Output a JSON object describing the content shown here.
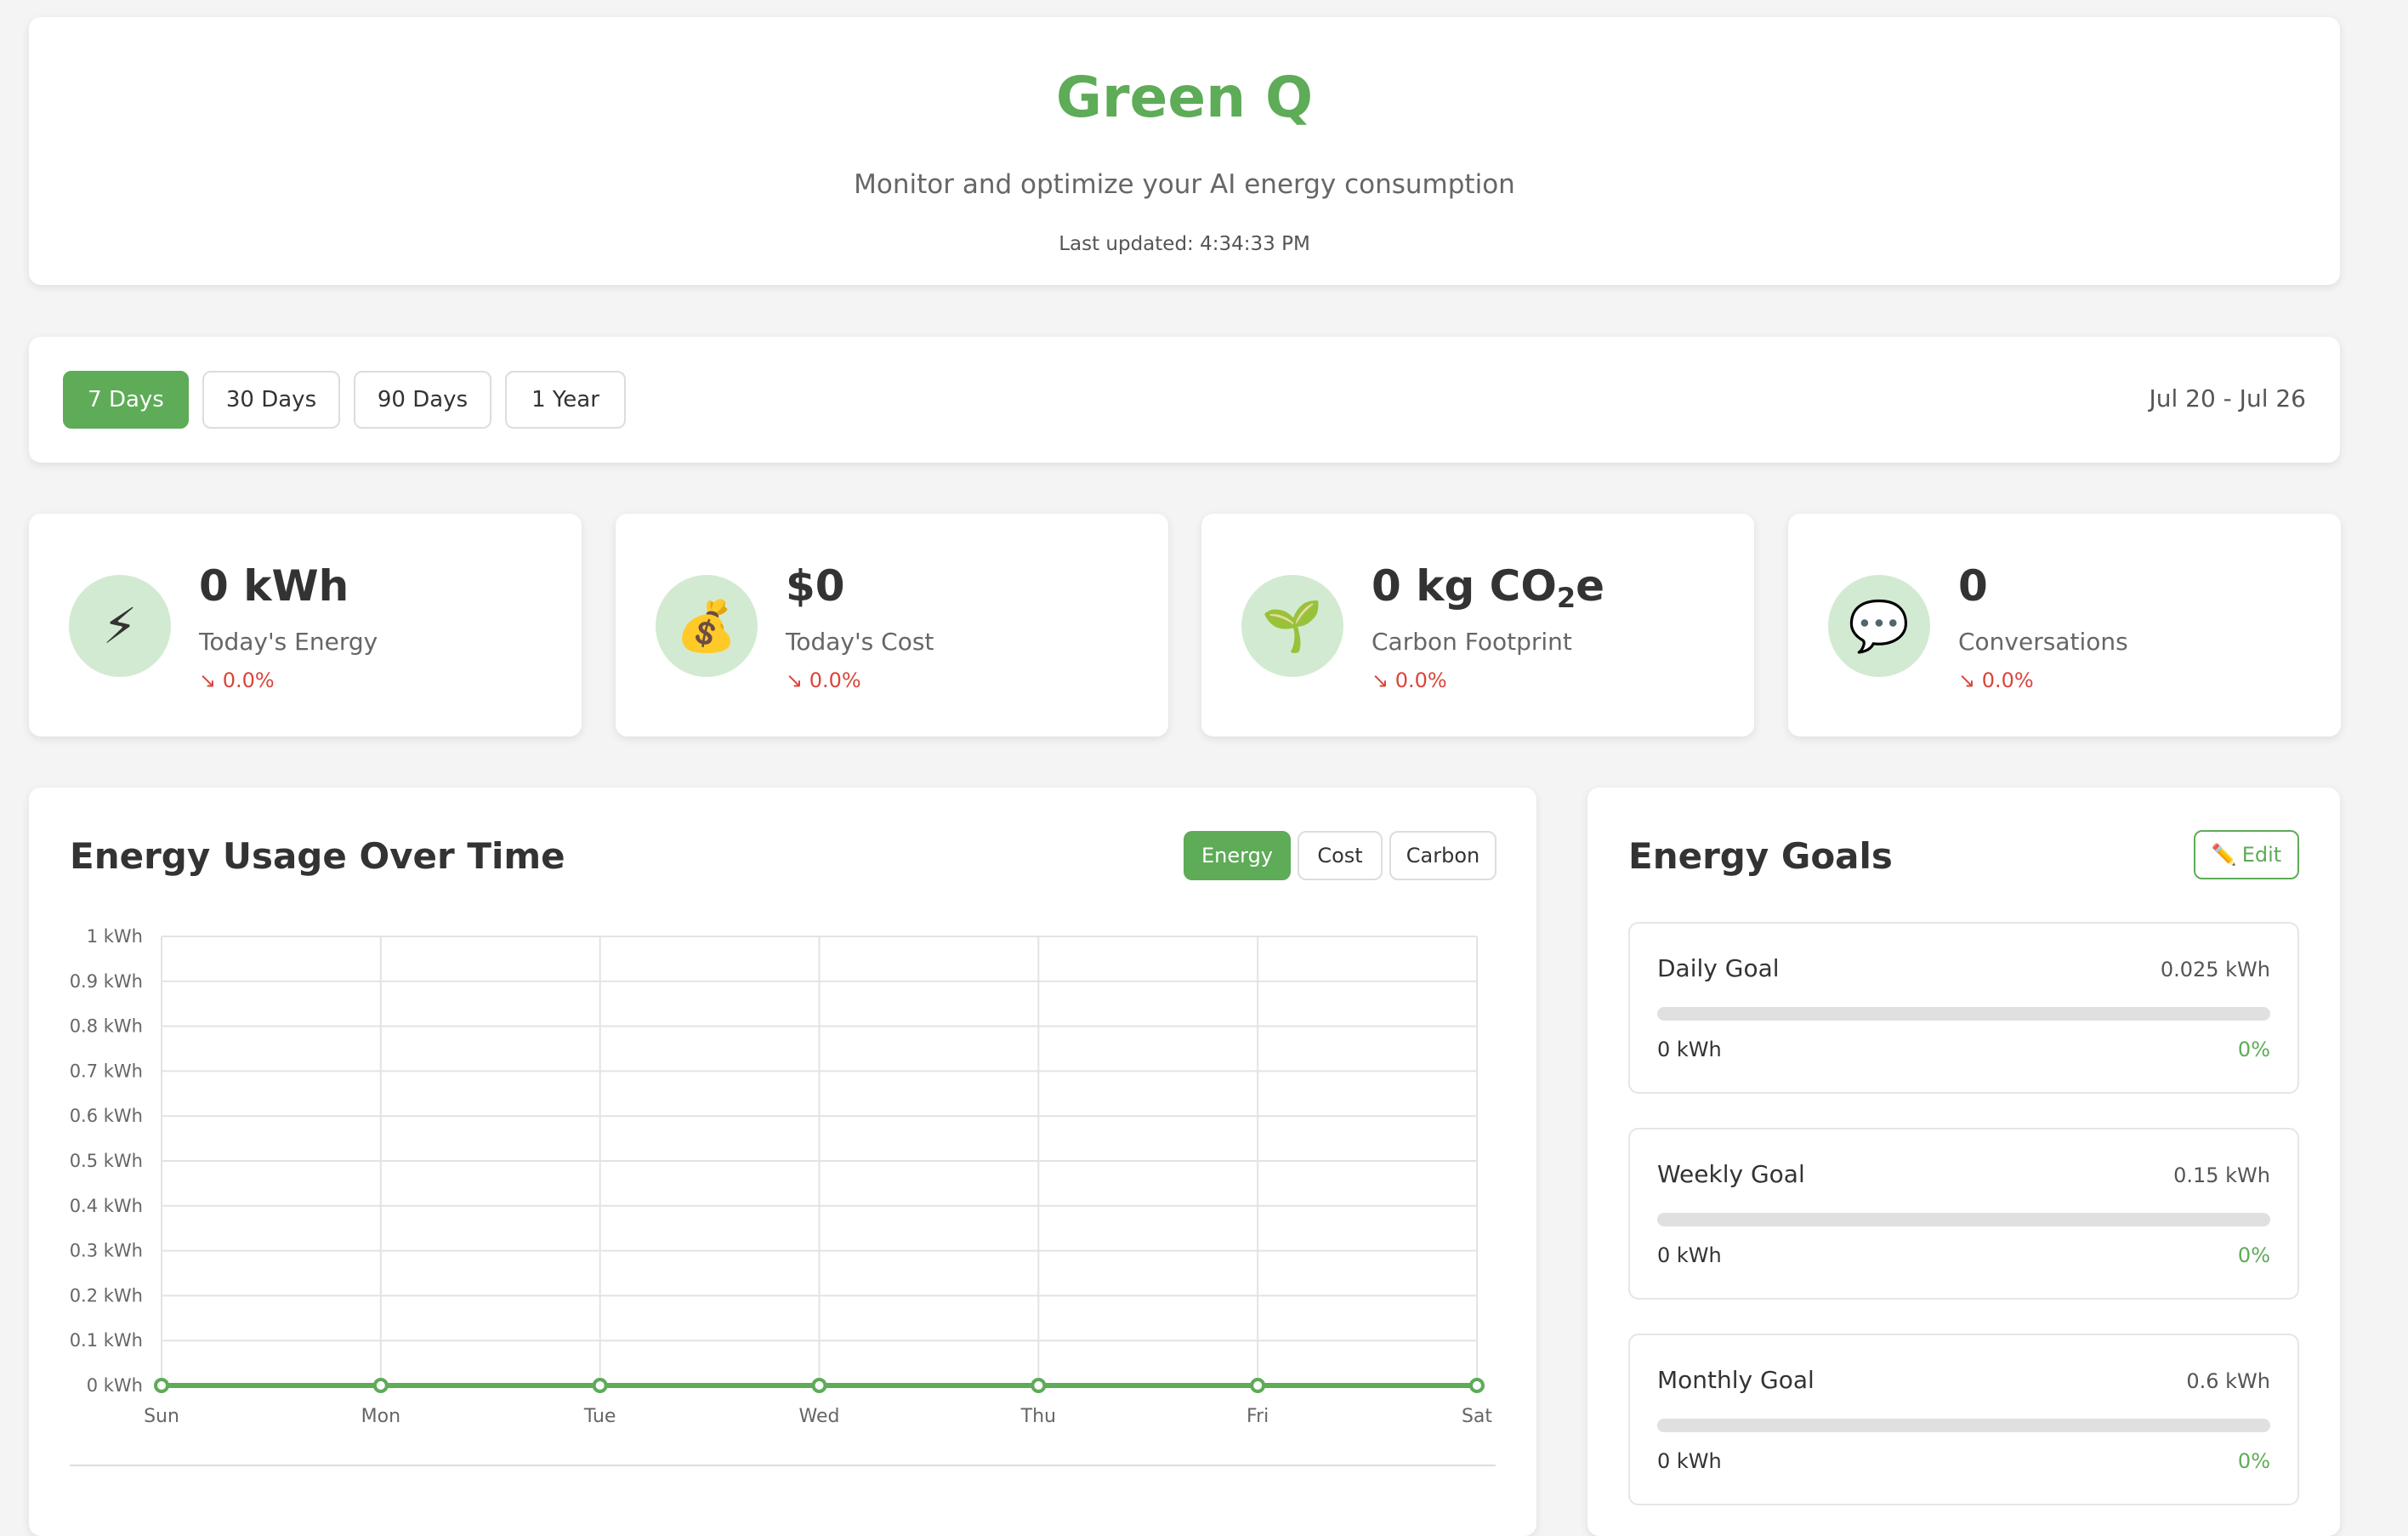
{
  "header": {
    "title": "Green Q",
    "subtitle": "Monitor and optimize your AI energy consumption",
    "last_updated": "Last updated: 4:34:33 PM"
  },
  "range": {
    "options": [
      "7 Days",
      "30 Days",
      "90 Days",
      "1 Year"
    ],
    "active": "7 Days",
    "date_range": "Jul 20 - Jul 26"
  },
  "stats": [
    {
      "icon": "lightning-icon",
      "glyph": "⚡",
      "value": "0 kWh",
      "label": "Today's Energy",
      "change": "↘ 0.0%"
    },
    {
      "icon": "money-bag-icon",
      "glyph": "💰",
      "value": "$0",
      "label": "Today's Cost",
      "change": "↘ 0.0%"
    },
    {
      "icon": "seedling-icon",
      "glyph": "🌱",
      "value_prefix": "0 kg CO",
      "value_sub": "2",
      "value_suffix": "e",
      "label": "Carbon Footprint",
      "change": "↘ 0.0%"
    },
    {
      "icon": "speech-bubble-icon",
      "glyph": "💬",
      "value": "0",
      "label": "Conversations",
      "change": "↘ 0.0%"
    }
  ],
  "chart_section": {
    "title": "Energy Usage Over Time",
    "metrics": [
      "Energy",
      "Cost",
      "Carbon"
    ],
    "active_metric": "Energy"
  },
  "chart_data": {
    "type": "line",
    "categories": [
      "Sun",
      "Mon",
      "Tue",
      "Wed",
      "Thu",
      "Fri",
      "Sat"
    ],
    "series": [
      {
        "values": [
          0,
          0,
          0,
          0,
          0,
          0,
          0
        ],
        "color": "#5eab58"
      }
    ],
    "yticks": [
      "0 kWh",
      "0.1 kWh",
      "0.2 kWh",
      "0.3 kWh",
      "0.4 kWh",
      "0.5 kWh",
      "0.6 kWh",
      "0.7 kWh",
      "0.8 kWh",
      "0.9 kWh",
      "1 kWh"
    ],
    "ylim": [
      0,
      1
    ],
    "grid": true
  },
  "goals": {
    "title": "Energy Goals",
    "edit_icon": "pencil-icon",
    "edit_label": "Edit",
    "items": [
      {
        "name": "Daily Goal",
        "target": "0.025 kWh",
        "current": "0 kWh",
        "percent": "0%",
        "progress": 0
      },
      {
        "name": "Weekly Goal",
        "target": "0.15 kWh",
        "current": "0 kWh",
        "percent": "0%",
        "progress": 0
      },
      {
        "name": "Monthly Goal",
        "target": "0.6 kWh",
        "current": "0 kWh",
        "percent": "0%",
        "progress": 0
      }
    ]
  },
  "colors": {
    "accent": "#5eab58",
    "negative": "#d9453b",
    "icon_bg": "#d3ead2"
  }
}
